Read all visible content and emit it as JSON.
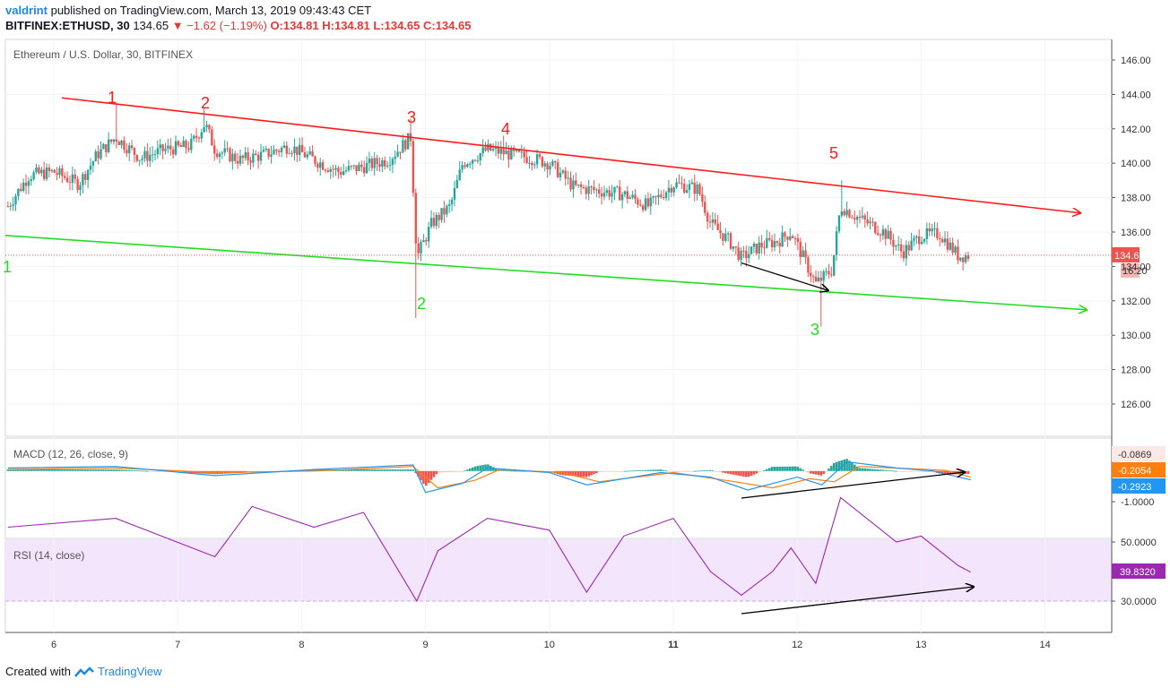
{
  "header": {
    "author": "valdrint",
    "published": "published on TradingView.com, March 13, 2019 09:43:43 CET",
    "symbol": "BITFINEX:ETHUSD, 30",
    "last": "134.65",
    "change": "▼ −1.62 (−1.19%)",
    "ohlc": "O:134.81 H:134.81 L:134.65 C:134.65"
  },
  "footer": {
    "created_with": "Created with",
    "brand": "TradingView"
  },
  "colors": {
    "up": "#26a69a",
    "down": "#ef5350",
    "resistance": "#ff1a1a",
    "support": "#22dd22",
    "macd": "#2196f3",
    "signal": "#ff7f0e",
    "rsi": "#9c27b0",
    "rsi_bg": "#f3e5fc"
  },
  "chart_data": [
    {
      "type": "candlestick",
      "title": "Ethereum / U.S. Dollar, 30, BITFINEX",
      "ylim": [
        124,
        147
      ],
      "y_ticks": [
        "146.00",
        "144.00",
        "142.00",
        "140.00",
        "138.00",
        "136.00",
        "134.00",
        "132.00",
        "130.00",
        "128.00",
        "126.00"
      ],
      "x_ticks": [
        "6",
        "7",
        "8",
        "9",
        "10",
        "11",
        "12",
        "13",
        "14"
      ],
      "last_price_label": "134.65",
      "countdown_label": "16:20",
      "resistance_line": {
        "from": [
          5.63,
          143.8
        ],
        "to": [
          13.4,
          138.2
        ]
      },
      "support_line": {
        "from": [
          5.63,
          135.8
        ],
        "to": [
          13.4,
          132.0
        ]
      },
      "arrow": {
        "from": [
          11.55,
          134.2
        ],
        "to": [
          12.25,
          132.6
        ]
      },
      "wave_labels_resistance": [
        "1",
        "2",
        "3",
        "4",
        "5"
      ],
      "wave_labels_support": [
        "1",
        "2",
        "3"
      ],
      "path": [
        [
          5.63,
          137.5
        ],
        [
          5.8,
          139.3
        ],
        [
          6.0,
          139.5
        ],
        [
          6.2,
          138.8
        ],
        [
          6.35,
          140.5
        ],
        [
          6.5,
          141.5
        ],
        [
          6.7,
          140.3
        ],
        [
          6.9,
          140.8
        ],
        [
          7.1,
          141.0
        ],
        [
          7.22,
          142.3
        ],
        [
          7.3,
          140.8
        ],
        [
          7.5,
          140.2
        ],
        [
          7.7,
          140.5
        ],
        [
          7.9,
          141.0
        ],
        [
          8.1,
          140.2
        ],
        [
          8.3,
          139.5
        ],
        [
          8.5,
          139.8
        ],
        [
          8.7,
          140.2
        ],
        [
          8.88,
          141.5
        ],
        [
          8.93,
          134.5
        ],
        [
          9.05,
          136.5
        ],
        [
          9.2,
          137.5
        ],
        [
          9.3,
          140.0
        ],
        [
          9.5,
          140.8
        ],
        [
          9.7,
          140.5
        ],
        [
          9.85,
          140.3
        ],
        [
          10.0,
          140.0
        ],
        [
          10.2,
          138.6
        ],
        [
          10.4,
          138.4
        ],
        [
          10.6,
          138.2
        ],
        [
          10.8,
          137.5
        ],
        [
          11.0,
          138.8
        ],
        [
          11.2,
          138.5
        ],
        [
          11.3,
          136.5
        ],
        [
          11.45,
          135.5
        ],
        [
          11.55,
          134.5
        ],
        [
          11.7,
          135.2
        ],
        [
          11.85,
          135.5
        ],
        [
          11.95,
          136.0
        ],
        [
          12.05,
          134.5
        ],
        [
          12.15,
          133.0
        ],
        [
          12.28,
          133.8
        ],
        [
          12.35,
          137.5
        ],
        [
          12.5,
          136.8
        ],
        [
          12.7,
          136.0
        ],
        [
          12.85,
          134.8
        ],
        [
          13.0,
          135.8
        ],
        [
          13.15,
          135.9
        ],
        [
          13.3,
          134.6
        ],
        [
          13.4,
          134.65
        ]
      ]
    },
    {
      "type": "line",
      "title": "MACD (12, 26, close, 9)",
      "y_ticks": [
        "-1.0000"
      ],
      "labels": [
        "-0.0869",
        "-0.2054",
        "-0.2923"
      ],
      "series": [
        {
          "name": "MACD",
          "values": [
            [
              5.63,
              0.1
            ],
            [
              6.5,
              0.15
            ],
            [
              7.3,
              -0.15
            ],
            [
              8.1,
              0.05
            ],
            [
              8.9,
              0.2
            ],
            [
              9.0,
              -0.7
            ],
            [
              9.3,
              -0.4
            ],
            [
              9.5,
              0.1
            ],
            [
              10.0,
              -0.05
            ],
            [
              10.3,
              -0.45
            ],
            [
              10.9,
              -0.05
            ],
            [
              11.3,
              -0.2
            ],
            [
              11.6,
              -0.62
            ],
            [
              12.0,
              -0.2
            ],
            [
              12.2,
              -0.45
            ],
            [
              12.4,
              0.3
            ],
            [
              12.8,
              0.1
            ],
            [
              13.1,
              0.0
            ],
            [
              13.4,
              -0.29
            ]
          ]
        },
        {
          "name": "Signal",
          "values": [
            [
              5.63,
              0.05
            ],
            [
              6.5,
              0.1
            ],
            [
              7.3,
              -0.05
            ],
            [
              8.1,
              0.0
            ],
            [
              8.9,
              0.15
            ],
            [
              9.1,
              -0.55
            ],
            [
              9.4,
              -0.3
            ],
            [
              9.6,
              0.05
            ],
            [
              10.1,
              -0.05
            ],
            [
              10.4,
              -0.35
            ],
            [
              11.0,
              -0.05
            ],
            [
              11.5,
              -0.35
            ],
            [
              11.8,
              -0.55
            ],
            [
              12.1,
              -0.25
            ],
            [
              12.3,
              -0.35
            ],
            [
              12.5,
              0.15
            ],
            [
              12.9,
              0.08
            ],
            [
              13.2,
              0.02
            ],
            [
              13.4,
              -0.2
            ]
          ]
        }
      ],
      "histogram": "dark teal when rising above zero, light pink / red when below zero"
    },
    {
      "type": "line",
      "title": "RSI (14, close)",
      "y_ticks": [
        "50.0000",
        "30.0000"
      ],
      "last_label": "39.8320",
      "values": [
        [
          5.63,
          55
        ],
        [
          6.5,
          58
        ],
        [
          7.3,
          45
        ],
        [
          7.6,
          62
        ],
        [
          8.1,
          55
        ],
        [
          8.5,
          60
        ],
        [
          8.93,
          30
        ],
        [
          9.1,
          47
        ],
        [
          9.5,
          58
        ],
        [
          10.0,
          54
        ],
        [
          10.3,
          33
        ],
        [
          10.6,
          52
        ],
        [
          11.0,
          58
        ],
        [
          11.3,
          40
        ],
        [
          11.55,
          32
        ],
        [
          11.8,
          40
        ],
        [
          11.95,
          48
        ],
        [
          12.15,
          36
        ],
        [
          12.35,
          65
        ],
        [
          12.8,
          50
        ],
        [
          13.0,
          52
        ],
        [
          13.3,
          42
        ],
        [
          13.4,
          39.8
        ]
      ],
      "arrow": {
        "from": [
          11.55,
          31
        ],
        "to": [
          13.3,
          35
        ]
      }
    }
  ]
}
